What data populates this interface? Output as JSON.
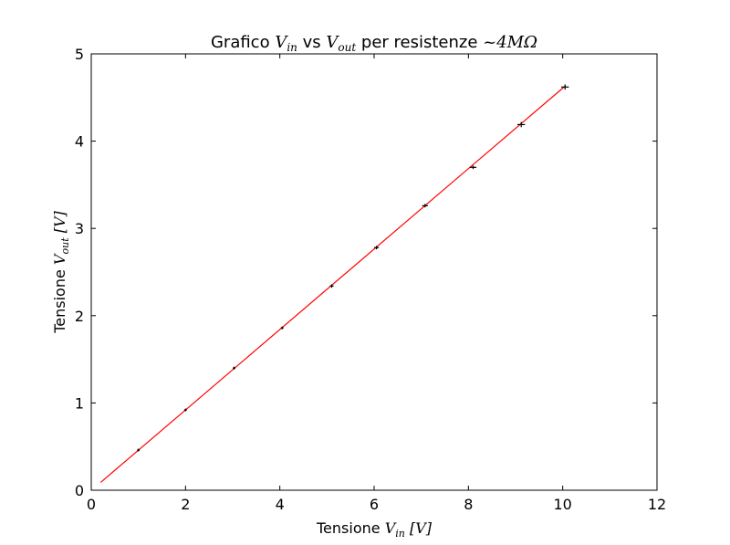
{
  "chart_data": {
    "type": "scatter",
    "title": {
      "prefix": "Grafico ",
      "v1": "V",
      "v1_sub": "in",
      "mid": " vs ",
      "v2": "V",
      "v2_sub": "out",
      "suffix": " per resistenze ",
      "math": "~4MΩ"
    },
    "xlabel": {
      "text": "Tensione ",
      "v": "V",
      "sub": "in",
      "unit": " [V]"
    },
    "ylabel": {
      "text": "Tensione ",
      "v": "V",
      "sub": "out",
      "unit": " [V]"
    },
    "xlim": [
      0,
      12
    ],
    "ylim": [
      0,
      5
    ],
    "xticks": [
      "0",
      "2",
      "4",
      "6",
      "8",
      "10",
      "12"
    ],
    "yticks": [
      "0",
      "1",
      "2",
      "3",
      "4",
      "5"
    ],
    "grid": false,
    "points": [
      {
        "x": 1.0,
        "y": 0.46,
        "xerr": 0.02,
        "yerr": 0.01
      },
      {
        "x": 2.0,
        "y": 0.92,
        "xerr": 0.02,
        "yerr": 0.01
      },
      {
        "x": 3.03,
        "y": 1.4,
        "xerr": 0.03,
        "yerr": 0.01
      },
      {
        "x": 4.05,
        "y": 1.86,
        "xerr": 0.03,
        "yerr": 0.01
      },
      {
        "x": 5.1,
        "y": 2.34,
        "xerr": 0.04,
        "yerr": 0.02
      },
      {
        "x": 6.05,
        "y": 2.78,
        "xerr": 0.05,
        "yerr": 0.02
      },
      {
        "x": 7.08,
        "y": 3.26,
        "xerr": 0.06,
        "yerr": 0.02
      },
      {
        "x": 8.1,
        "y": 3.7,
        "xerr": 0.07,
        "yerr": 0.02
      },
      {
        "x": 9.12,
        "y": 4.19,
        "xerr": 0.08,
        "yerr": 0.03
      },
      {
        "x": 10.05,
        "y": 4.62,
        "xerr": 0.08,
        "yerr": 0.03
      }
    ],
    "fit_line": {
      "x": [
        0.2,
        10.05
      ],
      "y": [
        0.09,
        4.63
      ]
    },
    "colors": {
      "points": "#000000",
      "fit": "#ff0000",
      "axes": "#000000"
    }
  }
}
